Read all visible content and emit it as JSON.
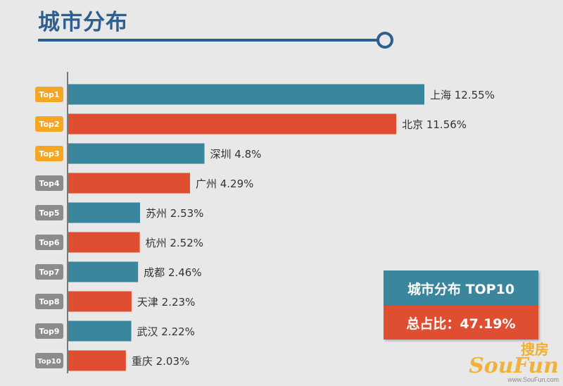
{
  "header": {
    "title": "城市分布"
  },
  "chart_data": {
    "type": "bar",
    "orientation": "horizontal",
    "categories": [
      "上海",
      "北京",
      "深圳",
      "广州",
      "苏州",
      "杭州",
      "成都",
      "天津",
      "武汉",
      "重庆"
    ],
    "values": [
      12.55,
      11.56,
      4.8,
      4.29,
      2.53,
      2.52,
      2.46,
      2.23,
      2.22,
      2.03
    ],
    "value_labels": [
      "12.55%",
      "11.56%",
      "4.8%",
      "4.29%",
      "2.53%",
      "2.52%",
      "2.46%",
      "2.23%",
      "2.22%",
      "2.03%"
    ],
    "ranks": [
      "Top1",
      "Top2",
      "Top3",
      "Top4",
      "Top5",
      "Top6",
      "Top7",
      "Top8",
      "Top9",
      "Top10"
    ],
    "unit": "%",
    "colors": {
      "odd": "#3a879d",
      "even": "#e04e31",
      "rank_top3": "#f5a623",
      "rank_other": "#8c8c8c"
    },
    "grid": false,
    "legend": "none"
  },
  "summary": {
    "title": "城市分布  TOP10",
    "total": "总占比：47.19%"
  },
  "watermark": {
    "zh": "搜房",
    "en": "SouFun",
    "url": "www.SouFun.com"
  }
}
